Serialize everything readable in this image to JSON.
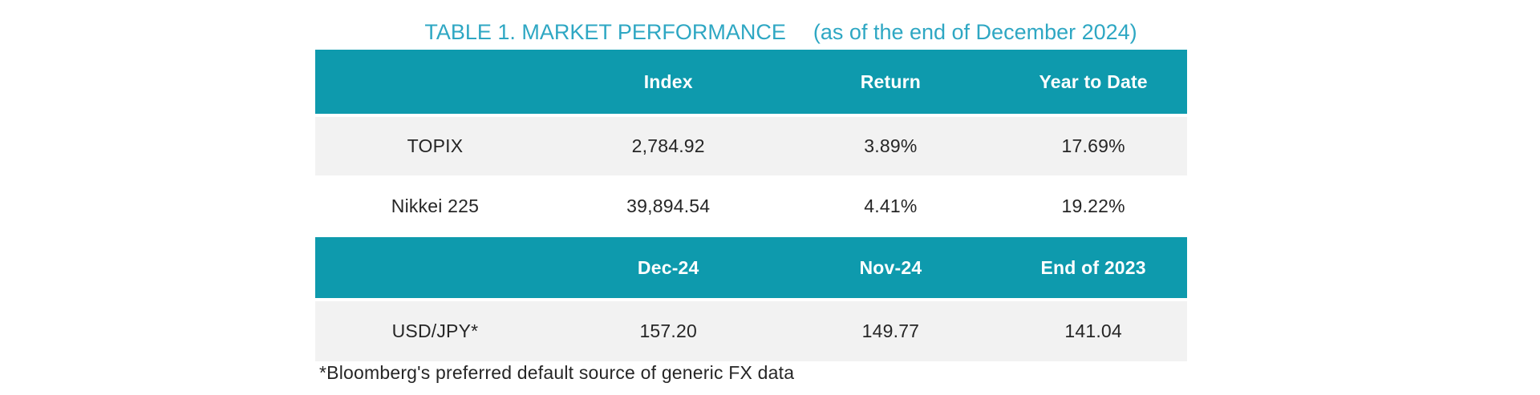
{
  "title": {
    "main": "TABLE 1. MARKET PERFORMANCE",
    "sub": "(as of the end of December 2024)"
  },
  "index_table": {
    "headers": [
      "",
      "Index",
      "Return",
      "Year to Date"
    ],
    "rows": [
      {
        "label": "TOPIX",
        "values": [
          "2,784.92",
          "3.89%",
          "17.69%"
        ]
      },
      {
        "label": "Nikkei 225",
        "values": [
          "39,894.54",
          "4.41%",
          "19.22%"
        ]
      }
    ]
  },
  "fx_table": {
    "headers": [
      "",
      "Dec-24",
      "Nov-24",
      "End of 2023"
    ],
    "rows": [
      {
        "label": "USD/JPY*",
        "values": [
          "157.20",
          "149.77",
          "141.04"
        ]
      }
    ]
  },
  "footnote": "*Bloomberg's preferred default source of generic FX data",
  "colors": {
    "header_bg": "#0E9AAD",
    "title_text": "#2EA7C3",
    "alt_row_bg": "#F2F2F2",
    "body_text": "#262626",
    "header_text": "#FFFFFF"
  }
}
